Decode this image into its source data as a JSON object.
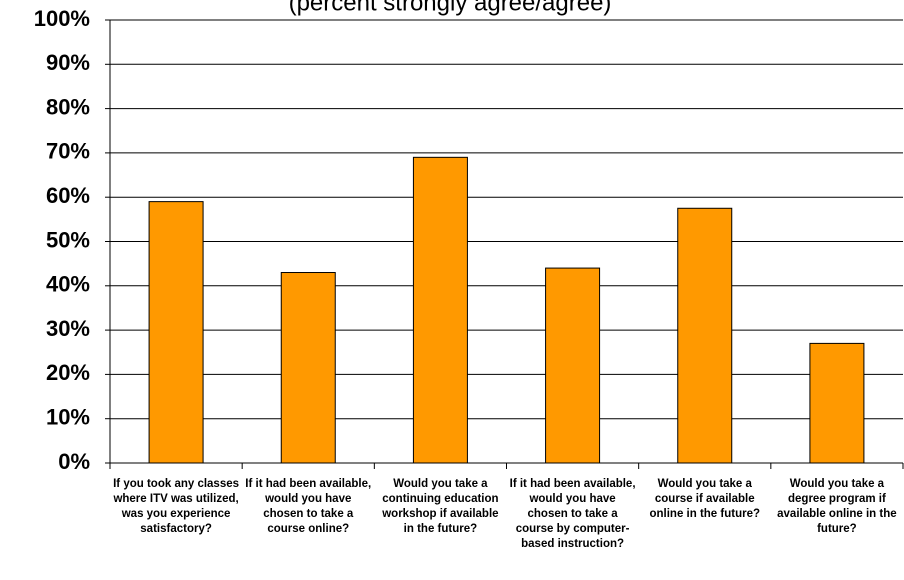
{
  "chart_data": {
    "type": "bar",
    "subtitle": "(percent strongly agree/agree)",
    "categories": [
      "If you took any classes where ITV was utilized, was you experience satisfactory?",
      "If it had been available, would you have chosen to take a course online?",
      "Would you take a continuing education workshop if available in the future?",
      "If it had been available, would you have chosen to take a course by computer-based instruction?",
      "Would you take a course if available online in the future?",
      "Would you take a degree program if available online in the future?"
    ],
    "values": [
      59,
      43,
      69,
      44,
      57.5,
      27
    ],
    "color": "#ff9900",
    "ylim": [
      0,
      100
    ],
    "yticks": [
      {
        "value": 0,
        "label": "0%"
      },
      {
        "value": 10,
        "label": "10%"
      },
      {
        "value": 20,
        "label": "20%"
      },
      {
        "value": 30,
        "label": "30%"
      },
      {
        "value": 40,
        "label": "40%"
      },
      {
        "value": 50,
        "label": "50%"
      },
      {
        "value": 60,
        "label": "60%"
      },
      {
        "value": 70,
        "label": "70%"
      },
      {
        "value": 80,
        "label": "80%"
      },
      {
        "value": 90,
        "label": "90%"
      },
      {
        "value": 100,
        "label": "100%"
      }
    ],
    "grid": true
  }
}
